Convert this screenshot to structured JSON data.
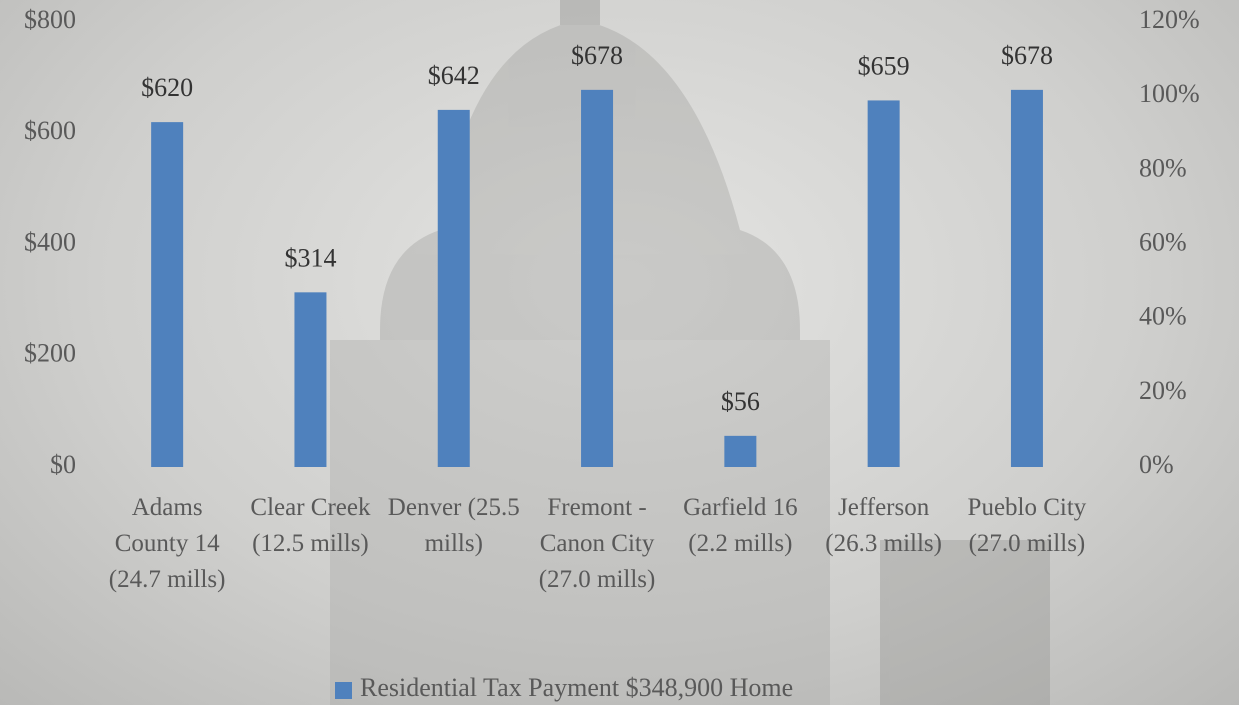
{
  "chart_data": {
    "type": "bar",
    "categories": [
      "Adams County 14 (24.7 mills)",
      "Clear Creek (12.5 mills)",
      "Denver (25.5 mills)",
      "Fremont - Canon City (27.0 mills)",
      "Garfield 16 (2.2 mills)",
      "Jefferson (26.3 mills)",
      "Pueblo City (27.0 mills)"
    ],
    "series": [
      {
        "name": "Residential Tax Payment $348,900 Home",
        "color": "#4f81bd",
        "values": [
          620,
          314,
          642,
          678,
          56,
          659,
          678
        ],
        "value_labels": [
          "$620",
          "$314",
          "$642",
          "$678",
          "$56",
          "$659",
          "$678"
        ]
      }
    ],
    "ylim": [
      0,
      800
    ],
    "yticks": [
      {
        "value": 0,
        "label": "$0"
      },
      {
        "value": 200,
        "label": "$200"
      },
      {
        "value": 400,
        "label": "$400"
      },
      {
        "value": 600,
        "label": "$600"
      },
      {
        "value": 800,
        "label": "$800"
      }
    ],
    "y2lim": [
      0,
      120
    ],
    "y2ticks": [
      {
        "value": 0,
        "label": "0%"
      },
      {
        "value": 20,
        "label": "20%"
      },
      {
        "value": 40,
        "label": "40%"
      },
      {
        "value": 60,
        "label": "60%"
      },
      {
        "value": 80,
        "label": "80%"
      },
      {
        "value": 100,
        "label": "100%"
      },
      {
        "value": 120,
        "label": "120%"
      }
    ],
    "legend": "bottom"
  }
}
